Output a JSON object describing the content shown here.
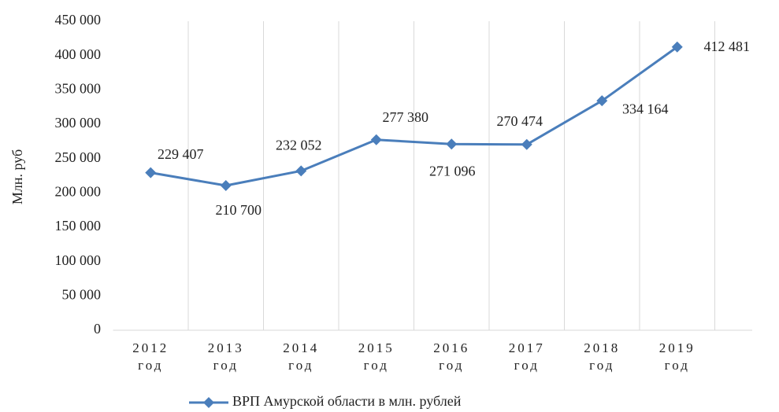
{
  "chart_data": {
    "type": "line",
    "y_axis_label": "Млн. руб",
    "categories": [
      "2012 год",
      "2013 год",
      "2014 год",
      "2015 год",
      "2016 год",
      "2017 год",
      "2018 год",
      "2019 год"
    ],
    "series": [
      {
        "name": "ВРП Амурской области в млн. рублей",
        "color": "#4a7ebb",
        "values": [
          229407,
          210700,
          232052,
          277380,
          271096,
          270474,
          334164,
          412481
        ],
        "value_labels": [
          "229 407",
          "210 700",
          "232 052",
          "277 380",
          "271 096",
          "270 474",
          "334 164",
          "412 481"
        ]
      }
    ],
    "ylim": [
      0,
      450000
    ],
    "yticks": [
      0,
      {
        "value": 50000,
        "label": "50 000"
      },
      {
        "value": 100000,
        "label": "100 000"
      },
      {
        "value": 150000,
        "label": "150 000"
      },
      {
        "value": 200000,
        "label": "200 000"
      },
      {
        "value": 250000,
        "label": "250 000"
      },
      {
        "value": 300000,
        "label": "300 000"
      },
      {
        "value": 350000,
        "label": "350 000"
      },
      {
        "value": 400000,
        "label": "400 000"
      },
      {
        "value": 450000,
        "label": "450 000"
      }
    ],
    "grid": "x",
    "legend": "bottom"
  }
}
